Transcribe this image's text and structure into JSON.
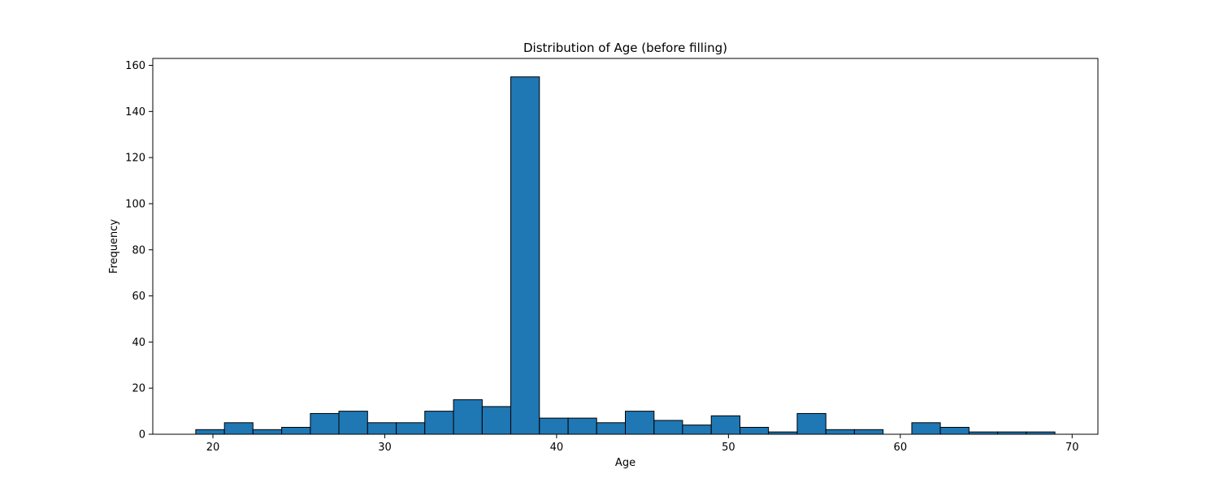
{
  "chart_data": {
    "type": "bar",
    "title": "Distribution of Age (before filling)",
    "xlabel": "Age",
    "ylabel": "Frequency",
    "xlim": [
      16.5,
      71.5
    ],
    "ylim": [
      0,
      163
    ],
    "x_ticks": [
      20,
      30,
      40,
      50,
      60,
      70
    ],
    "y_ticks": [
      0,
      20,
      40,
      60,
      80,
      100,
      120,
      140,
      160
    ],
    "bin_start": 19,
    "bin_width": 1.6667,
    "bins": [
      {
        "start": 19.0,
        "end": 20.67,
        "count": 2
      },
      {
        "start": 20.67,
        "end": 22.33,
        "count": 5
      },
      {
        "start": 22.33,
        "end": 24.0,
        "count": 2
      },
      {
        "start": 24.0,
        "end": 25.67,
        "count": 3
      },
      {
        "start": 25.67,
        "end": 27.33,
        "count": 9
      },
      {
        "start": 27.33,
        "end": 29.0,
        "count": 10
      },
      {
        "start": 29.0,
        "end": 30.67,
        "count": 5
      },
      {
        "start": 30.67,
        "end": 32.33,
        "count": 5
      },
      {
        "start": 32.33,
        "end": 34.0,
        "count": 10
      },
      {
        "start": 34.0,
        "end": 35.67,
        "count": 15
      },
      {
        "start": 35.67,
        "end": 37.33,
        "count": 12
      },
      {
        "start": 37.33,
        "end": 39.0,
        "count": 155
      },
      {
        "start": 39.0,
        "end": 40.67,
        "count": 7
      },
      {
        "start": 40.67,
        "end": 42.33,
        "count": 7
      },
      {
        "start": 42.33,
        "end": 44.0,
        "count": 5
      },
      {
        "start": 44.0,
        "end": 45.67,
        "count": 10
      },
      {
        "start": 45.67,
        "end": 47.33,
        "count": 6
      },
      {
        "start": 47.33,
        "end": 49.0,
        "count": 4
      },
      {
        "start": 49.0,
        "end": 50.67,
        "count": 8
      },
      {
        "start": 50.67,
        "end": 52.33,
        "count": 3
      },
      {
        "start": 52.33,
        "end": 54.0,
        "count": 1
      },
      {
        "start": 54.0,
        "end": 55.67,
        "count": 9
      },
      {
        "start": 55.67,
        "end": 57.33,
        "count": 2
      },
      {
        "start": 57.33,
        "end": 59.0,
        "count": 2
      },
      {
        "start": 59.0,
        "end": 60.67,
        "count": 0
      },
      {
        "start": 60.67,
        "end": 62.33,
        "count": 5
      },
      {
        "start": 62.33,
        "end": 64.0,
        "count": 3
      },
      {
        "start": 64.0,
        "end": 65.67,
        "count": 1
      },
      {
        "start": 65.67,
        "end": 67.33,
        "count": 1
      },
      {
        "start": 67.33,
        "end": 69.0,
        "count": 1
      }
    ],
    "grid": false,
    "bar_color": "#1f77b4",
    "edge_color": "#000000"
  }
}
